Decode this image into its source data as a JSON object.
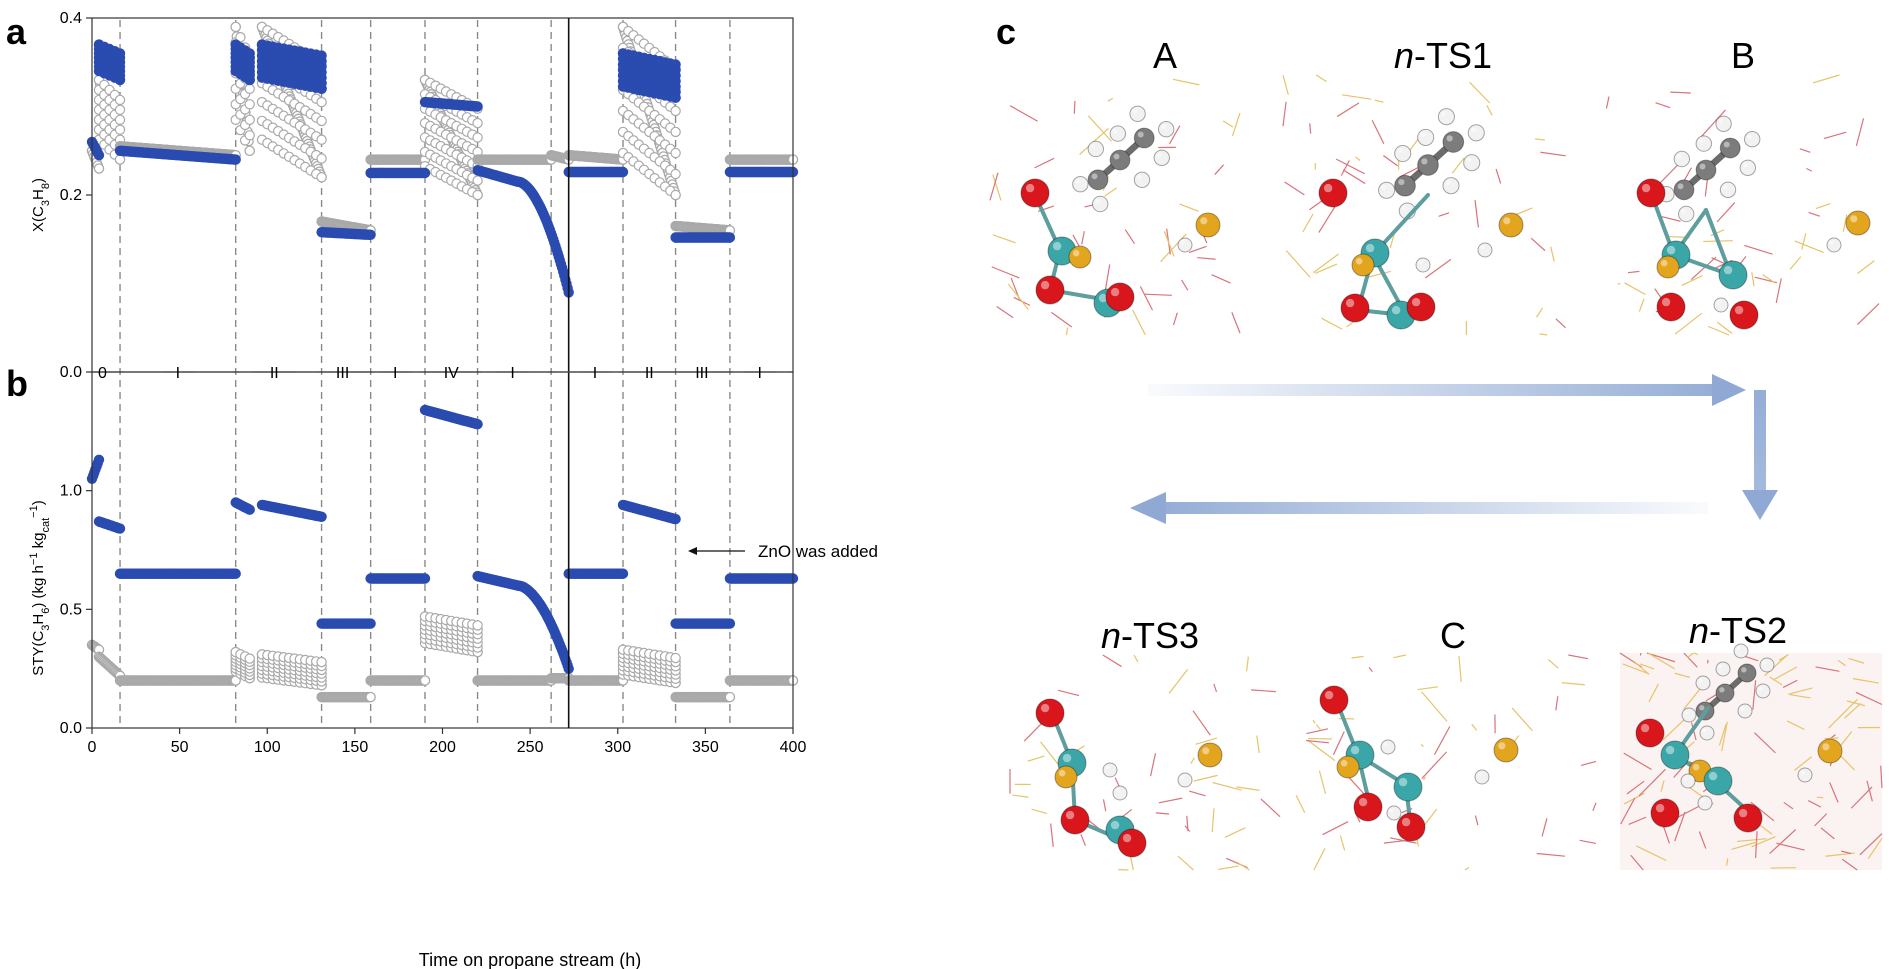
{
  "panel_labels": {
    "a": "a",
    "b": "b",
    "c": "c"
  },
  "colors": {
    "blue": "#2a4bb0",
    "grey": "#a9a9a9",
    "dash": "#8a8a8a",
    "arrow": "#8fa9d4"
  },
  "chart_data": [
    {
      "type": "scatter",
      "panel": "a",
      "ylabel_parts": [
        "X(C",
        "3",
        "H",
        "8",
        ")"
      ],
      "xlim": [
        0,
        400
      ],
      "ylim": [
        0,
        0.4
      ],
      "yticks": [
        "0.0",
        "0.2",
        "0.4"
      ],
      "series": [
        {
          "color": "blue",
          "segments": [
            {
              "x": [
                0,
                4
              ],
              "y": [
                0.26,
                0.245
              ]
            },
            {
              "x": [
                4,
                16
              ],
              "y": [
                0.37,
                0.33
              ]
            },
            {
              "x": [
                16,
                82
              ],
              "y": [
                0.25,
                0.24
              ]
            },
            {
              "x": [
                82,
                90
              ],
              "y": [
                0.37,
                0.33
              ]
            },
            {
              "x": [
                97,
                131
              ],
              "y": [
                0.37,
                0.32
              ]
            },
            {
              "x": [
                131,
                159
              ],
              "y": [
                0.158,
                0.155
              ]
            },
            {
              "x": [
                159,
                190
              ],
              "y": [
                0.225,
                0.225
              ]
            },
            {
              "x": [
                190,
                220
              ],
              "y": [
                0.305,
                0.3
              ]
            },
            {
              "x": [
                220,
                243
              ],
              "y": [
                0.228,
                0.215
              ]
            },
            {
              "x": [
                243,
                272
              ],
              "y": [
                0.215,
                0.09
              ],
              "curve": true
            },
            {
              "x": [
                272,
                303
              ],
              "y": [
                0.226,
                0.226
              ]
            },
            {
              "x": [
                303,
                333
              ],
              "y": [
                0.36,
                0.31
              ]
            },
            {
              "x": [
                333,
                364
              ],
              "y": [
                0.152,
                0.152
              ]
            },
            {
              "x": [
                364,
                400
              ],
              "y": [
                0.226,
                0.226
              ]
            }
          ]
        },
        {
          "color": "grey",
          "segments": [
            {
              "x": [
                0,
                4
              ],
              "y": [
                0.25,
                0.23
              ]
            },
            {
              "x": [
                4,
                16
              ],
              "y": [
                0.33,
                0.24
              ]
            },
            {
              "x": [
                16,
                82
              ],
              "y": [
                0.255,
                0.245
              ]
            },
            {
              "x": [
                82,
                90
              ],
              "y": [
                0.39,
                0.25
              ]
            },
            {
              "x": [
                97,
                131
              ],
              "y": [
                0.39,
                0.22
              ]
            },
            {
              "x": [
                131,
                159
              ],
              "y": [
                0.17,
                0.16
              ]
            },
            {
              "x": [
                159,
                190
              ],
              "y": [
                0.24,
                0.24
              ]
            },
            {
              "x": [
                190,
                220
              ],
              "y": [
                0.33,
                0.2
              ]
            },
            {
              "x": [
                220,
                262
              ],
              "y": [
                0.24,
                0.24
              ]
            },
            {
              "x": [
                262,
                272
              ],
              "y": [
                0.245,
                0.24
              ]
            },
            {
              "x": [
                272,
                303
              ],
              "y": [
                0.245,
                0.24
              ]
            },
            {
              "x": [
                303,
                333
              ],
              "y": [
                0.39,
                0.2
              ]
            },
            {
              "x": [
                333,
                364
              ],
              "y": [
                0.165,
                0.16
              ]
            },
            {
              "x": [
                364,
                400
              ],
              "y": [
                0.24,
                0.24
              ]
            }
          ]
        }
      ]
    },
    {
      "type": "scatter",
      "panel": "b",
      "xlabel": "Time on propane stream (h)",
      "ylabel_parts": [
        "STY(C",
        "3",
        "H",
        "6",
        ") (kg h",
        "−1",
        " kg",
        "cat",
        "",
        "−1",
        ")"
      ],
      "xlim": [
        0,
        400
      ],
      "ylim": [
        0,
        1.5
      ],
      "yticks": [
        "0.0",
        "0.5",
        "1.0"
      ],
      "xticks": [
        "0",
        "50",
        "100",
        "150",
        "200",
        "250",
        "300",
        "350",
        "400"
      ],
      "series": [
        {
          "color": "blue",
          "segments": [
            {
              "x": [
                0,
                4
              ],
              "y": [
                1.05,
                1.13
              ]
            },
            {
              "x": [
                4,
                16
              ],
              "y": [
                0.87,
                0.84
              ]
            },
            {
              "x": [
                16,
                82
              ],
              "y": [
                0.65,
                0.65
              ]
            },
            {
              "x": [
                82,
                90
              ],
              "y": [
                0.95,
                0.92
              ]
            },
            {
              "x": [
                97,
                131
              ],
              "y": [
                0.94,
                0.89
              ]
            },
            {
              "x": [
                131,
                159
              ],
              "y": [
                0.44,
                0.44
              ]
            },
            {
              "x": [
                159,
                190
              ],
              "y": [
                0.63,
                0.63
              ]
            },
            {
              "x": [
                190,
                220
              ],
              "y": [
                1.34,
                1.28
              ]
            },
            {
              "x": [
                220,
                243
              ],
              "y": [
                0.64,
                0.6
              ]
            },
            {
              "x": [
                243,
                272
              ],
              "y": [
                0.6,
                0.25
              ],
              "curve": true
            },
            {
              "x": [
                272,
                303
              ],
              "y": [
                0.65,
                0.65
              ]
            },
            {
              "x": [
                303,
                333
              ],
              "y": [
                0.94,
                0.88
              ]
            },
            {
              "x": [
                333,
                364
              ],
              "y": [
                0.44,
                0.44
              ]
            },
            {
              "x": [
                364,
                400
              ],
              "y": [
                0.63,
                0.63
              ]
            }
          ]
        },
        {
          "color": "grey",
          "segments": [
            {
              "x": [
                0,
                4
              ],
              "y": [
                0.35,
                0.33
              ]
            },
            {
              "x": [
                4,
                16
              ],
              "y": [
                0.3,
                0.22
              ]
            },
            {
              "x": [
                16,
                82
              ],
              "y": [
                0.2,
                0.2
              ]
            },
            {
              "x": [
                82,
                90
              ],
              "y": [
                0.32,
                0.21
              ]
            },
            {
              "x": [
                97,
                131
              ],
              "y": [
                0.31,
                0.18
              ]
            },
            {
              "x": [
                131,
                159
              ],
              "y": [
                0.13,
                0.13
              ]
            },
            {
              "x": [
                159,
                190
              ],
              "y": [
                0.2,
                0.2
              ]
            },
            {
              "x": [
                190,
                220
              ],
              "y": [
                0.47,
                0.32
              ]
            },
            {
              "x": [
                220,
                262
              ],
              "y": [
                0.2,
                0.2
              ]
            },
            {
              "x": [
                262,
                272
              ],
              "y": [
                0.21,
                0.21
              ]
            },
            {
              "x": [
                272,
                303
              ],
              "y": [
                0.2,
                0.2
              ]
            },
            {
              "x": [
                303,
                333
              ],
              "y": [
                0.33,
                0.19
              ]
            },
            {
              "x": [
                333,
                364
              ],
              "y": [
                0.13,
                0.13
              ]
            },
            {
              "x": [
                364,
                400
              ],
              "y": [
                0.2,
                0.2
              ]
            }
          ]
        }
      ]
    }
  ],
  "stage_boundaries_h": [
    16,
    82,
    131,
    159,
    190,
    220,
    262,
    303,
    333,
    364
  ],
  "zno_line_h": 272,
  "stages": [
    {
      "label": "0",
      "x": 6
    },
    {
      "label": "I",
      "x": 49
    },
    {
      "label": "II",
      "x": 104
    },
    {
      "label": "III",
      "x": 143
    },
    {
      "label": "I",
      "x": 173
    },
    {
      "label": "IV",
      "x": 205
    },
    {
      "label": "I",
      "x": 240
    },
    {
      "label": "I",
      "x": 287
    },
    {
      "label": "II",
      "x": 318
    },
    {
      "label": "III",
      "x": 348
    },
    {
      "label": "I",
      "x": 381
    }
  ],
  "annotation": {
    "text": "ZnO was added"
  },
  "structures": {
    "top": [
      {
        "label_italic": "",
        "label": "A",
        "name": "structure-A"
      },
      {
        "label_italic": "n",
        "label": "-TS1",
        "name": "structure-n-TS1"
      },
      {
        "label_italic": "",
        "label": "B",
        "name": "structure-B"
      }
    ],
    "bottom": [
      {
        "label_italic": "n",
        "label": "-TS3",
        "name": "structure-n-TS3"
      },
      {
        "label_italic": "",
        "label": "C",
        "name": "structure-C"
      },
      {
        "label_italic": "n",
        "label": "-TS2",
        "name": "structure-n-TS2"
      }
    ]
  }
}
